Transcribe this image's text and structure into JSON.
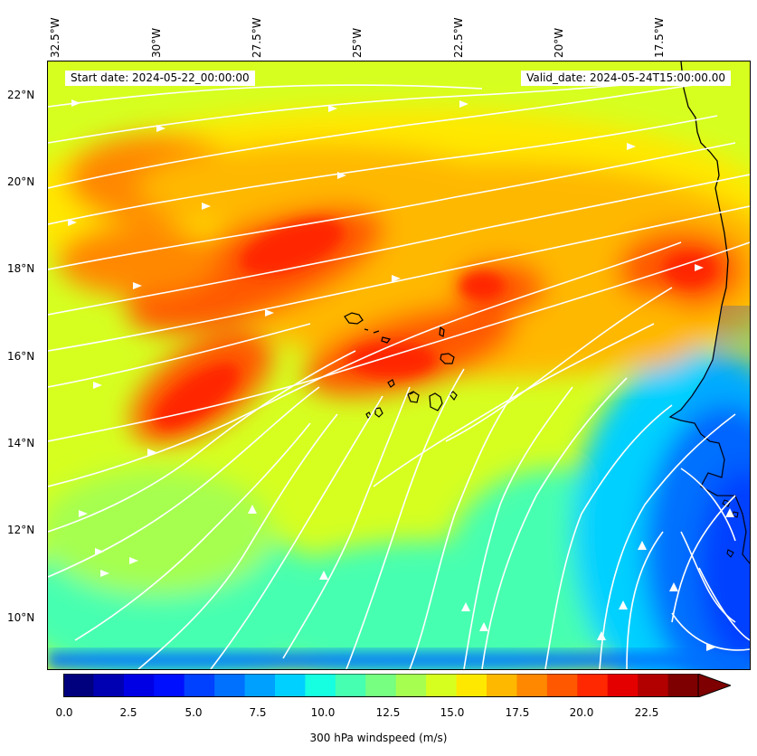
{
  "map": {
    "start_date_text": "Start date: 2024-05-22_00:00:00",
    "valid_date_text": "Valid_date: 2024-05-24T15:00:00.00",
    "lon_labels": [
      "32.5°W",
      "30°W",
      "27.5°W",
      "25°W",
      "22.5°W",
      "20°W",
      "17.5°W"
    ],
    "lat_labels": [
      "22°N",
      "20°N",
      "18°N",
      "16°N",
      "14°N",
      "12°N",
      "10°N"
    ],
    "streamline_color": "#ffffff",
    "coastline_color": "#000000"
  },
  "colorbar": {
    "label": "300 hPa windspeed (m/s)",
    "ticks": [
      "0.0",
      "2.5",
      "5.0",
      "7.5",
      "10.0",
      "12.5",
      "15.0",
      "17.5",
      "20.0",
      "22.5"
    ],
    "colors": [
      "#00007f",
      "#0000b2",
      "#0000e5",
      "#0010ff",
      "#0040ff",
      "#0070ff",
      "#00a0ff",
      "#00d0ff",
      "#16ffe0",
      "#46ffb0",
      "#76ff80",
      "#a6ff50",
      "#d6ff20",
      "#ffe800",
      "#ffb800",
      "#ff8800",
      "#ff5800",
      "#ff2800",
      "#e50000",
      "#b20000",
      "#7f0000"
    ]
  }
}
